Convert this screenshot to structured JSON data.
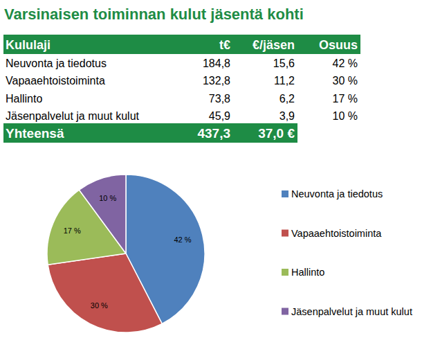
{
  "title": "Varsinaisen toiminnan kulut jäsentä kohti",
  "table": {
    "header": [
      "Kululaji",
      "t€",
      "€/jäsen",
      "Osuus"
    ],
    "rows": [
      [
        "Neuvonta ja tiedotus",
        "184,8",
        "15,6",
        "42 %"
      ],
      [
        "Vapaaehtoistoiminta",
        "132,8",
        "11,2",
        "30 %"
      ],
      [
        "Hallinto",
        "73,8",
        "6,2",
        "17 %"
      ],
      [
        "Jäsenpalvelut ja muut kulut",
        "45,9",
        "3,9",
        "10 %"
      ]
    ],
    "total": [
      "Yhteensä",
      "437,3",
      "37,0 €"
    ]
  },
  "chart_data": {
    "type": "pie",
    "categories": [
      "Neuvonta ja tiedotus",
      "Vapaaehtoistoiminta",
      "Hallinto",
      "Jäsenpalvelut ja muut kulut"
    ],
    "values": [
      42,
      30,
      17,
      10
    ],
    "value_labels": [
      "42 %",
      "30 %",
      "17 %",
      "10 %"
    ],
    "colors": [
      "#4f81bd",
      "#c0504d",
      "#9bbb59",
      "#8064a2"
    ],
    "data_labels": true,
    "legend": "right"
  }
}
